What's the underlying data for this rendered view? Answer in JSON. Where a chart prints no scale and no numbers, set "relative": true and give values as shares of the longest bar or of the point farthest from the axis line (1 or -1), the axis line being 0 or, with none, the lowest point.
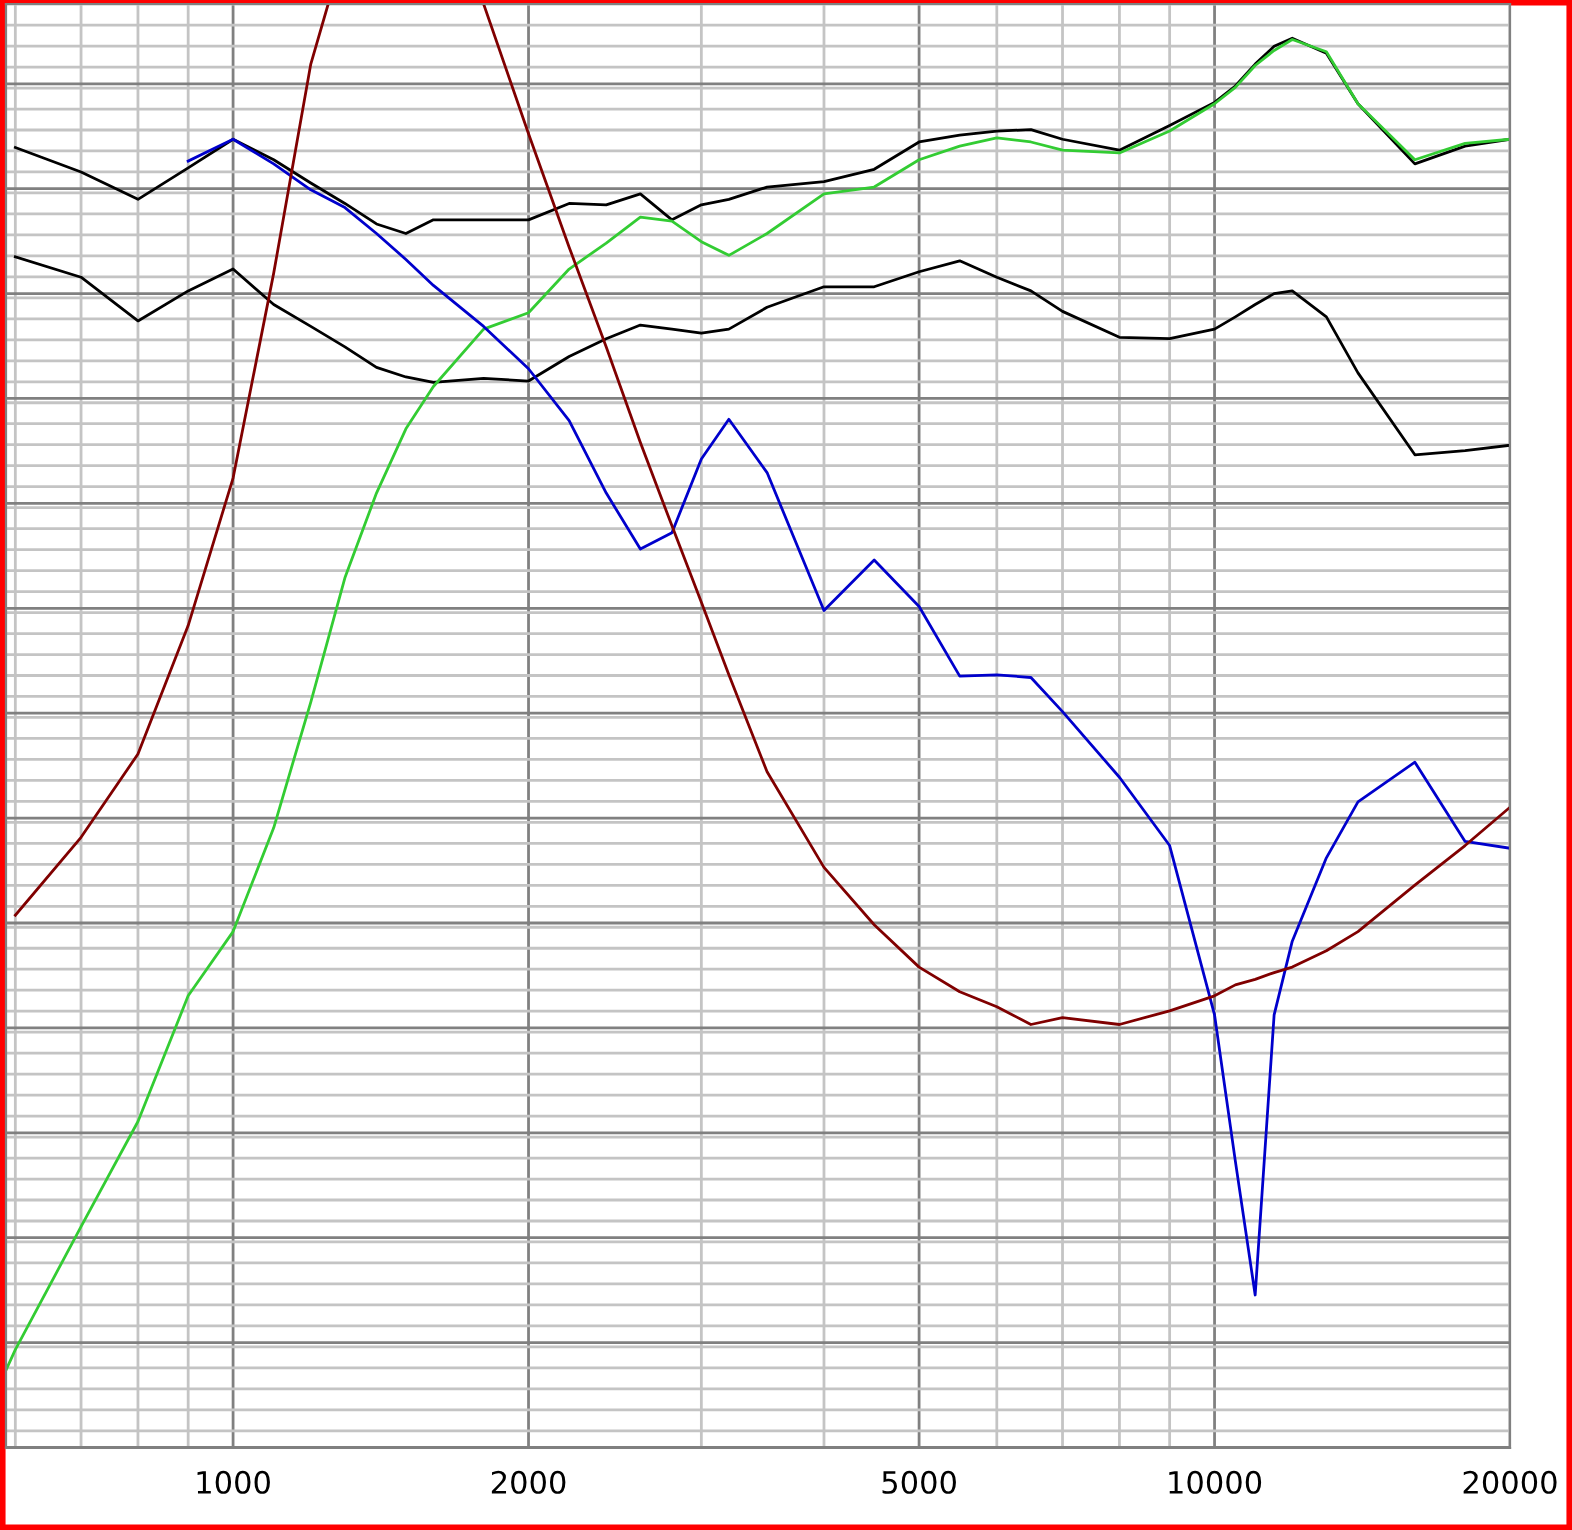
{
  "chart_data": {
    "type": "line",
    "relative": true,
    "log": "x",
    "grid": true,
    "tick_labels": "x",
    "line_style": "solid",
    "xlim": [
      587,
      20000
    ],
    "xticks": [
      1000,
      2000,
      5000,
      10000,
      20000
    ],
    "x": [
      600,
      700,
      800,
      900,
      1000,
      1100,
      1200,
      1300,
      1400,
      1500,
      1600,
      1800,
      2000,
      2200,
      2400,
      2600,
      2800,
      3000,
      3200,
      3500,
      4000,
      4500,
      5000,
      5500,
      6000,
      6500,
      7000,
      8000,
      9000,
      10000,
      10500,
      11000,
      11500,
      12000,
      13000,
      14000,
      16000,
      18000,
      20000
    ],
    "series": [
      {
        "color": "#000000",
        "values": [
          0.895,
          0.877,
          0.857,
          0.88,
          0.901,
          0.886,
          0.869,
          0.854,
          0.839,
          0.832,
          0.842,
          0.842,
          0.842,
          0.854,
          0.853,
          0.861,
          0.842,
          0.853,
          0.857,
          0.866,
          0.87,
          0.879,
          0.899,
          0.904,
          0.907,
          0.908,
          0.901,
          0.893,
          0.911,
          0.928,
          0.94,
          0.956,
          0.969,
          0.975,
          0.964,
          0.927,
          0.883,
          0.896,
          0.901
        ]
      },
      {
        "color": "#000000",
        "values": [
          0.815,
          0.8,
          0.768,
          0.79,
          0.806,
          0.78,
          0.764,
          0.749,
          0.734,
          0.727,
          0.723,
          0.726,
          0.724,
          0.742,
          0.755,
          0.765,
          0.762,
          0.759,
          0.762,
          0.778,
          0.793,
          0.793,
          0.804,
          0.812,
          0.8,
          0.79,
          0.775,
          0.756,
          0.755,
          0.762,
          0.771,
          0.78,
          0.788,
          0.79,
          0.771,
          0.73,
          0.67,
          0.673,
          0.677
        ]
      },
      {
        "color": "#33cc33",
        "x": [
          587,
          600,
          700,
          800,
          900,
          1000,
          1100,
          1200,
          1300,
          1400,
          1500,
          1600,
          1800,
          2000,
          2200,
          2400,
          2600,
          2800,
          3000,
          3200,
          3500,
          4000,
          4500,
          5000,
          5500,
          6000,
          6500,
          7000,
          8000,
          9000,
          10000,
          10500,
          11000,
          11500,
          12000,
          13000,
          14000,
          16000,
          18000,
          20000
        ],
        "values": [
          0,
          0.015,
          0.105,
          0.182,
          0.274,
          0.321,
          0.397,
          0.489,
          0.58,
          0.642,
          0.689,
          0.72,
          0.762,
          0.774,
          0.806,
          0.825,
          0.844,
          0.841,
          0.826,
          0.816,
          0.832,
          0.861,
          0.866,
          0.886,
          0.896,
          0.902,
          0.899,
          0.893,
          0.891,
          0.907,
          0.927,
          0.939,
          0.955,
          0.966,
          0.974,
          0.965,
          0.927,
          0.886,
          0.898,
          0.901
        ]
      },
      {
        "color": "#0000cc",
        "values": [
          null,
          null,
          null,
          0.885,
          0.901,
          0.883,
          0.864,
          0.851,
          0.832,
          0.813,
          0.794,
          0.764,
          0.733,
          0.695,
          0.642,
          0.601,
          0.613,
          0.667,
          0.696,
          0.657,
          0.556,
          0.593,
          0.559,
          0.508,
          0.509,
          0.507,
          0.482,
          0.434,
          0.384,
          0.26,
          0.153,
          0.055,
          0.26,
          0.314,
          0.375,
          0.416,
          0.445,
          0.387,
          0.382
        ]
      },
      {
        "color": "#800000",
        "x": [
          600,
          700,
          800,
          900,
          1000,
          1100,
          1200,
          1250,
          1500,
          1800,
          2000,
          2200,
          2400,
          2600,
          2800,
          3000,
          3200,
          3500,
          4000,
          4500,
          5000,
          5500,
          6000,
          6500,
          7000,
          8000,
          9000,
          10000,
          10500,
          11000,
          11500,
          12000,
          13000,
          14000,
          16000,
          18000,
          20000
        ],
        "values": [
          0.333,
          0.39,
          0.451,
          0.545,
          0.653,
          0.803,
          0.956,
          1,
          null,
          1,
          0.905,
          0.822,
          0.749,
          0.679,
          0.618,
          0.562,
          0.509,
          0.438,
          0.368,
          0.326,
          0.295,
          0.277,
          0.266,
          0.253,
          0.258,
          0.253,
          0.263,
          0.274,
          0.282,
          0.286,
          0.291,
          0.295,
          0.307,
          0.321,
          0.355,
          0.384,
          0.412
        ]
      }
    ]
  }
}
